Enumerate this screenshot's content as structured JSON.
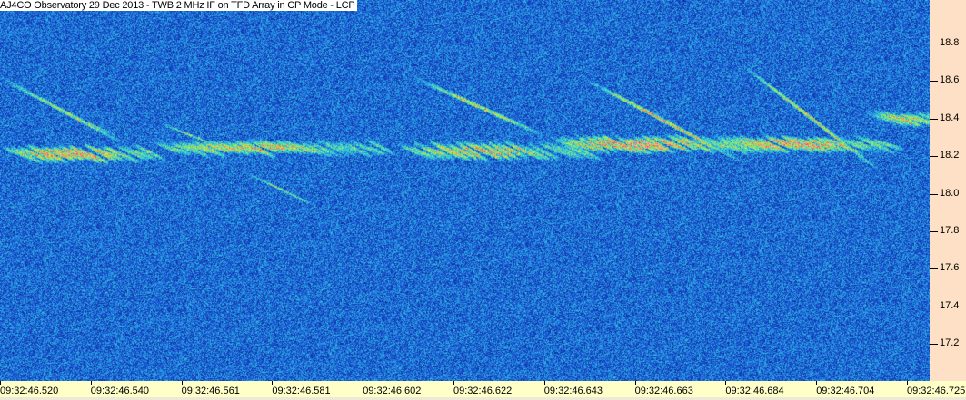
{
  "chart_data": {
    "type": "heatmap",
    "title": "AJ4CO Observatory 29 Dec 2013 - TWB 2 MHz IF on TFD Array in CP Mode - LCP",
    "xlabel": "",
    "ylabel": "",
    "x_tick_labels": [
      "09:32:46.520",
      "09:32:46.540",
      "09:32:46.561",
      "09:32:46.581",
      "09:32:46.602",
      "09:32:46.622",
      "09:32:46.643",
      "09:32:46.663",
      "09:32:46.684",
      "09:32:46.704",
      "09:32:46.725"
    ],
    "y_tick_labels": [
      "18.8",
      "18.6",
      "18.4",
      "18.2",
      "18.0",
      "17.8",
      "17.6",
      "17.4",
      "17.2"
    ],
    "y_axis_position": "right",
    "ylim": [
      17.05,
      18.98
    ],
    "colormap": [
      "#0a1e8c",
      "#1a50d0",
      "#2aa8e8",
      "#40e0c0",
      "#c8f040",
      "#f0a040",
      "#f04080",
      "#ffc0e0"
    ],
    "background_color": "#1848c0"
  }
}
